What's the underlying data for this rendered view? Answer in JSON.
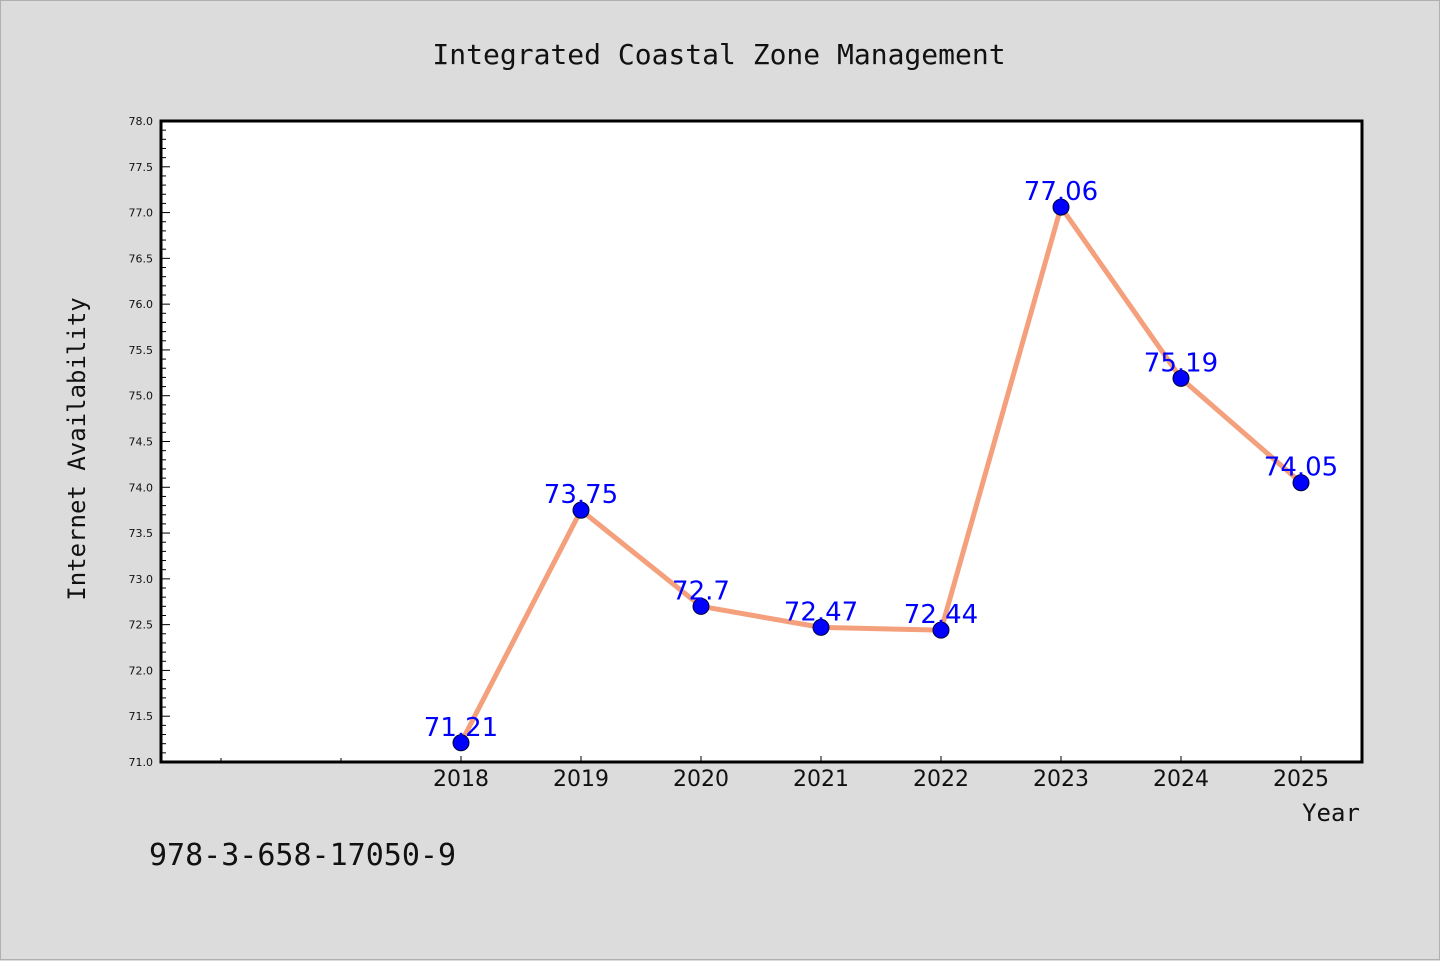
{
  "chart_data": {
    "type": "line",
    "title": "Integrated Coastal Zone Management",
    "xlabel": "Year",
    "ylabel": "Internet Availability",
    "categories": [
      "2018",
      "2019",
      "2020",
      "2021",
      "2022",
      "2023",
      "2024",
      "2025"
    ],
    "values": [
      71.21,
      73.75,
      72.7,
      72.47,
      72.44,
      77.06,
      75.19,
      74.05
    ],
    "data_labels": [
      "71.21",
      "73.75",
      "72.7",
      "72.47",
      "72.44",
      "77.06",
      "75.19",
      "74.05"
    ],
    "ylim": [
      71.0,
      78.0
    ],
    "ytick_labels": [
      "71.0",
      "71.5",
      "72.0",
      "72.5",
      "73.0",
      "73.5",
      "74.0",
      "74.5",
      "75.0",
      "75.5",
      "76.0",
      "76.5",
      "77.0",
      "77.5",
      "78.0"
    ],
    "grid": false,
    "line_color": "#f4a07c",
    "marker_color": "#0000ff",
    "label_color": "#0000ff"
  },
  "footer_text": "978-3-658-17050-9"
}
